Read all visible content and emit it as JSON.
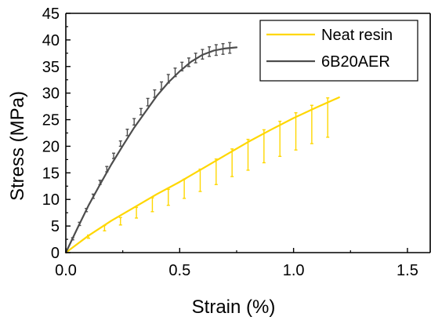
{
  "chart_data": {
    "type": "line",
    "title": "",
    "xlabel": "Strain (%)",
    "ylabel": "Stress (MPa)",
    "xlim": [
      0,
      1.6
    ],
    "ylim": [
      0,
      45
    ],
    "x_ticks": [
      "0.0",
      "0.5",
      "1.0",
      "1.5"
    ],
    "y_ticks": [
      "0",
      "5",
      "10",
      "15",
      "20",
      "25",
      "30",
      "35",
      "40",
      "45"
    ],
    "legend_position": "top-right",
    "grid": false,
    "series": [
      {
        "name": "Neat resin",
        "color": "#FFD700",
        "x": [
          0.0,
          0.05,
          0.1,
          0.15,
          0.2,
          0.3,
          0.4,
          0.5,
          0.6,
          0.7,
          0.8,
          0.9,
          1.0,
          1.1,
          1.2
        ],
        "y": [
          0.0,
          1.6,
          3.2,
          4.6,
          6.0,
          8.5,
          11.0,
          13.3,
          15.8,
          18.3,
          20.8,
          23.1,
          25.3,
          27.3,
          29.2
        ],
        "error_x": [
          0.1,
          0.17,
          0.24,
          0.31,
          0.38,
          0.45,
          0.52,
          0.59,
          0.66,
          0.73,
          0.8,
          0.87,
          0.94,
          1.01,
          1.08,
          1.15
        ],
        "error_y": [
          3.0,
          4.6,
          5.9,
          7.5,
          9.0,
          10.4,
          12.0,
          13.6,
          15.2,
          16.9,
          18.4,
          20.0,
          21.4,
          22.8,
          24.1,
          25.4
        ],
        "error_size": [
          0.3,
          0.5,
          0.7,
          1.0,
          1.3,
          1.5,
          1.8,
          2.1,
          2.4,
          2.6,
          2.9,
          3.1,
          3.3,
          3.5,
          3.6,
          3.7
        ]
      },
      {
        "name": "6B20AER",
        "color": "#4D4D4D",
        "x": [
          0.0,
          0.05,
          0.1,
          0.15,
          0.2,
          0.25,
          0.3,
          0.35,
          0.4,
          0.45,
          0.5,
          0.55,
          0.6,
          0.65,
          0.7,
          0.75
        ],
        "y": [
          0.0,
          4.5,
          8.9,
          12.8,
          16.6,
          20.1,
          23.5,
          26.5,
          29.5,
          32.0,
          34.1,
          35.9,
          37.2,
          38.0,
          38.4,
          38.6
        ],
        "error_x": [
          0.03,
          0.06,
          0.09,
          0.12,
          0.15,
          0.18,
          0.21,
          0.24,
          0.27,
          0.3,
          0.33,
          0.36,
          0.39,
          0.42,
          0.45,
          0.48,
          0.51,
          0.54,
          0.57,
          0.6,
          0.63,
          0.66,
          0.69,
          0.72
        ],
        "error_y": [
          2.6,
          5.4,
          8.0,
          10.6,
          13.2,
          15.7,
          18.2,
          20.5,
          22.6,
          24.6,
          26.5,
          28.3,
          29.9,
          31.4,
          32.7,
          33.9,
          35.0,
          35.8,
          36.6,
          37.3,
          37.8,
          38.1,
          38.3,
          38.5
        ],
        "error_size": [
          0.2,
          0.3,
          0.3,
          0.4,
          0.4,
          0.5,
          0.5,
          0.5,
          0.6,
          0.6,
          0.6,
          0.7,
          0.7,
          0.7,
          0.8,
          0.8,
          0.8,
          0.8,
          0.9,
          0.9,
          0.9,
          1.0,
          1.0,
          1.0
        ]
      }
    ]
  }
}
